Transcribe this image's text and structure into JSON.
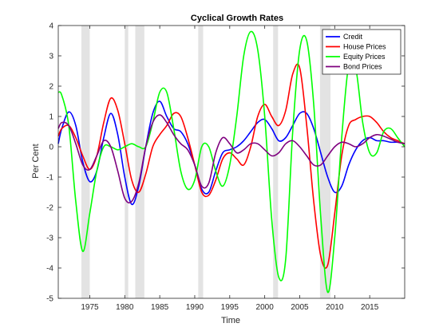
{
  "chart_data": {
    "type": "line",
    "title": "Cyclical Growth Rates",
    "xlabel": "Time",
    "ylabel": "Per Cent",
    "xlim": [
      1970.5,
      2020
    ],
    "ylim": [
      -5,
      4
    ],
    "xticks": [
      1975,
      1980,
      1985,
      1990,
      1995,
      2000,
      2005,
      2010,
      2015
    ],
    "yticks": [
      -5,
      -4,
      -3,
      -2,
      -1,
      0,
      1,
      2,
      3,
      4
    ],
    "grid": false,
    "legend": "top-right",
    "recession_bands": [
      [
        1973.8,
        1975.0
      ],
      [
        1980.0,
        1980.5
      ],
      [
        1981.5,
        1982.8
      ],
      [
        1990.5,
        1991.2
      ],
      [
        2001.2,
        2001.9
      ],
      [
        2007.9,
        2009.4
      ]
    ],
    "series": [
      {
        "name": "Credit",
        "color": "#0000ff",
        "points": [
          [
            1970.5,
            0.1
          ],
          [
            1971,
            0.6
          ],
          [
            1972,
            1.15
          ],
          [
            1973,
            0.7
          ],
          [
            1974,
            -0.5
          ],
          [
            1975,
            -1.15
          ],
          [
            1976,
            -0.8
          ],
          [
            1977,
            0.3
          ],
          [
            1978,
            1.1
          ],
          [
            1979,
            0.4
          ],
          [
            1980,
            -1.0
          ],
          [
            1981,
            -1.9
          ],
          [
            1982,
            -1.3
          ],
          [
            1983,
            0.0
          ],
          [
            1984,
            1.1
          ],
          [
            1985,
            1.5
          ],
          [
            1986,
            1.0
          ],
          [
            1987,
            0.6
          ],
          [
            1988,
            0.5
          ],
          [
            1989,
            0.1
          ],
          [
            1990,
            -0.6
          ],
          [
            1991,
            -1.4
          ],
          [
            1992,
            -1.5
          ],
          [
            1993,
            -0.8
          ],
          [
            1994,
            -0.2
          ],
          [
            1995,
            -0.1
          ],
          [
            1996,
            0.0
          ],
          [
            1997,
            0.2
          ],
          [
            1998,
            0.5
          ],
          [
            1999,
            0.8
          ],
          [
            2000,
            0.9
          ],
          [
            2001,
            0.6
          ],
          [
            2002,
            0.2
          ],
          [
            2003,
            0.3
          ],
          [
            2004,
            0.7
          ],
          [
            2005,
            1.1
          ],
          [
            2006,
            1.1
          ],
          [
            2007,
            0.6
          ],
          [
            2008,
            -0.2
          ],
          [
            2009,
            -1.0
          ],
          [
            2010,
            -1.5
          ],
          [
            2011,
            -1.3
          ],
          [
            2012,
            -0.6
          ],
          [
            2013,
            -0.1
          ],
          [
            2014,
            0.2
          ],
          [
            2015,
            0.3
          ],
          [
            2016,
            0.2
          ],
          [
            2017,
            0.2
          ],
          [
            2018,
            0.15
          ],
          [
            2019,
            0.15
          ],
          [
            2020,
            0.1
          ]
        ]
      },
      {
        "name": "House Prices",
        "color": "#ff0000",
        "points": [
          [
            1970.5,
            0.35
          ],
          [
            1971,
            0.6
          ],
          [
            1972,
            0.7
          ],
          [
            1973,
            0.3
          ],
          [
            1974,
            -0.3
          ],
          [
            1975,
            -0.75
          ],
          [
            1976,
            -0.3
          ],
          [
            1977,
            0.8
          ],
          [
            1978,
            1.6
          ],
          [
            1979,
            1.2
          ],
          [
            1980,
            0.1
          ],
          [
            1981,
            -1.1
          ],
          [
            1982,
            -1.5
          ],
          [
            1983,
            -0.9
          ],
          [
            1984,
            0.0
          ],
          [
            1985,
            0.4
          ],
          [
            1986,
            0.7
          ],
          [
            1987,
            1.1
          ],
          [
            1988,
            1.0
          ],
          [
            1989,
            0.3
          ],
          [
            1990,
            -0.6
          ],
          [
            1991,
            -1.5
          ],
          [
            1992,
            -1.6
          ],
          [
            1993,
            -1.1
          ],
          [
            1994,
            -0.4
          ],
          [
            1995,
            -0.2
          ],
          [
            1996,
            -0.4
          ],
          [
            1997,
            -0.6
          ],
          [
            1998,
            0.0
          ],
          [
            1999,
            1.0
          ],
          [
            2000,
            1.4
          ],
          [
            2001,
            1.0
          ],
          [
            2002,
            0.7
          ],
          [
            2003,
            1.2
          ],
          [
            2004,
            2.4
          ],
          [
            2005,
            2.6
          ],
          [
            2006,
            0.7
          ],
          [
            2007,
            -1.8
          ],
          [
            2008,
            -3.6
          ],
          [
            2009,
            -3.9
          ],
          [
            2010,
            -2.2
          ],
          [
            2011,
            -0.3
          ],
          [
            2012,
            0.7
          ],
          [
            2013,
            0.9
          ],
          [
            2014,
            1.0
          ],
          [
            2015,
            1.0
          ],
          [
            2016,
            0.8
          ],
          [
            2017,
            0.5
          ],
          [
            2018,
            0.3
          ],
          [
            2019,
            0.2
          ],
          [
            2020,
            0.1
          ]
        ]
      },
      {
        "name": "Equity Prices",
        "color": "#00ff00",
        "points": [
          [
            1970.5,
            1.8
          ],
          [
            1971,
            1.7
          ],
          [
            1972,
            0.7
          ],
          [
            1973,
            -1.8
          ],
          [
            1974,
            -3.45
          ],
          [
            1975,
            -2.2
          ],
          [
            1976,
            -0.8
          ],
          [
            1977,
            0.0
          ],
          [
            1978,
            0.0
          ],
          [
            1979,
            -0.1
          ],
          [
            1980,
            0.0
          ],
          [
            1981,
            0.1
          ],
          [
            1982,
            0.0
          ],
          [
            1983,
            0.0
          ],
          [
            1984,
            0.8
          ],
          [
            1985,
            1.8
          ],
          [
            1986,
            1.8
          ],
          [
            1987,
            0.6
          ],
          [
            1988,
            -0.8
          ],
          [
            1989,
            -1.4
          ],
          [
            1990,
            -1.1
          ],
          [
            1991,
            0.0
          ],
          [
            1992,
            0.0
          ],
          [
            1993,
            -0.8
          ],
          [
            1994,
            -1.3
          ],
          [
            1995,
            -0.6
          ],
          [
            1996,
            1.0
          ],
          [
            1997,
            3.0
          ],
          [
            1998,
            3.8
          ],
          [
            1999,
            3.2
          ],
          [
            2000,
            1.0
          ],
          [
            2001,
            -2.4
          ],
          [
            2002,
            -4.3
          ],
          [
            2003,
            -3.7
          ],
          [
            2004,
            0.5
          ],
          [
            2005,
            3.2
          ],
          [
            2006,
            3.5
          ],
          [
            2007,
            1.4
          ],
          [
            2008,
            -2.3
          ],
          [
            2009,
            -4.8
          ],
          [
            2010,
            -3.0
          ],
          [
            2011,
            0.3
          ],
          [
            2012,
            2.7
          ],
          [
            2013,
            2.6
          ],
          [
            2014,
            0.8
          ],
          [
            2015,
            -0.2
          ],
          [
            2016,
            -0.2
          ],
          [
            2017,
            0.5
          ],
          [
            2018,
            0.6
          ],
          [
            2019,
            0.3
          ],
          [
            2020,
            0.0
          ]
        ]
      },
      {
        "name": "Bond Prices",
        "color": "#7f007f",
        "points": [
          [
            1970.5,
            0.6
          ],
          [
            1971,
            0.8
          ],
          [
            1972,
            0.7
          ],
          [
            1973,
            0.1
          ],
          [
            1974,
            -0.6
          ],
          [
            1975,
            -0.75
          ],
          [
            1976,
            -0.3
          ],
          [
            1977,
            0.2
          ],
          [
            1978,
            0.0
          ],
          [
            1979,
            -0.8
          ],
          [
            1980,
            -1.7
          ],
          [
            1981,
            -1.8
          ],
          [
            1982,
            -1.2
          ],
          [
            1983,
            0.0
          ],
          [
            1984,
            0.8
          ],
          [
            1985,
            1.05
          ],
          [
            1986,
            0.8
          ],
          [
            1987,
            0.4
          ],
          [
            1988,
            0.1
          ],
          [
            1989,
            -0.1
          ],
          [
            1990,
            -0.6
          ],
          [
            1991,
            -1.3
          ],
          [
            1992,
            -1.2
          ],
          [
            1993,
            -0.2
          ],
          [
            1994,
            0.3
          ],
          [
            1995,
            0.1
          ],
          [
            1996,
            -0.2
          ],
          [
            1997,
            -0.1
          ],
          [
            1998,
            0.1
          ],
          [
            1999,
            0.1
          ],
          [
            2000,
            -0.1
          ],
          [
            2001,
            -0.3
          ],
          [
            2002,
            -0.2
          ],
          [
            2003,
            0.1
          ],
          [
            2004,
            0.2
          ],
          [
            2005,
            0.0
          ],
          [
            2006,
            -0.3
          ],
          [
            2007,
            -0.6
          ],
          [
            2008,
            -0.6
          ],
          [
            2009,
            -0.3
          ],
          [
            2010,
            0.0
          ],
          [
            2011,
            0.15
          ],
          [
            2012,
            0.1
          ],
          [
            2013,
            0.0
          ],
          [
            2014,
            0.1
          ],
          [
            2015,
            0.3
          ],
          [
            2016,
            0.4
          ],
          [
            2017,
            0.35
          ],
          [
            2018,
            0.25
          ],
          [
            2019,
            0.15
          ],
          [
            2020,
            0.1
          ]
        ]
      }
    ]
  }
}
